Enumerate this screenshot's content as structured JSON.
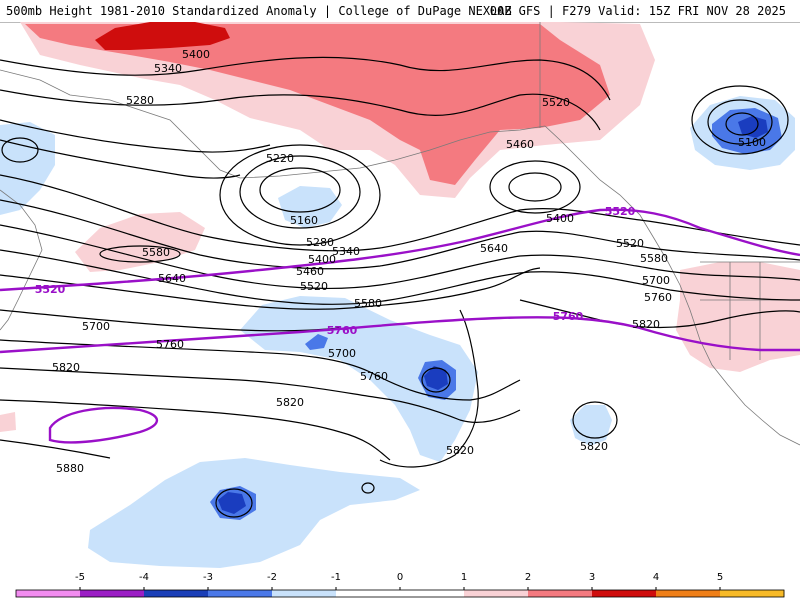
{
  "header": {
    "title_left": "500mb Height 1981-2010 Standardized Anomaly | College of DuPage NEXLAB",
    "title_right": "00Z GFS | F279 Valid: 15Z FRI NOV 28 2025"
  },
  "map": {
    "region": "North Pacific and western North America",
    "height_contour_labels": [
      "5400",
      "5340",
      "5280",
      "5520",
      "5460",
      "5220",
      "5160",
      "5280",
      "5340",
      "5400",
      "5460",
      "5520",
      "5580",
      "5640",
      "5580",
      "5700",
      "5760",
      "5700",
      "5760",
      "5820",
      "5820",
      "5880",
      "5820",
      "5820",
      "5400",
      "5520",
      "5580",
      "5640",
      "5700",
      "5760",
      "5820",
      "5100"
    ],
    "climo_contour_labels": [
      "5520",
      "5520",
      "5760",
      "5760"
    ],
    "colors": {
      "contour": "#000000",
      "climo_contour": "#9a10c8",
      "pos1": "#f9d2d6",
      "pos2": "#f47a80",
      "pos3": "#cf0d0d",
      "neg1": "#c9e2fb",
      "neg2": "#4a78e8",
      "neg3": "#1a3dbf"
    }
  },
  "colorbar": {
    "ticks": [
      "-5",
      "-4",
      "-3",
      "-2",
      "-1",
      "0",
      "1",
      "2",
      "3",
      "4",
      "5"
    ],
    "colors": [
      "#f28cf0",
      "#9b1ec5",
      "#1a3fb8",
      "#4a78e8",
      "#c9e2fb",
      "#ffffff",
      "#ffffff",
      "#f9d2d6",
      "#f47a80",
      "#cf0d0d",
      "#ef7f18",
      "#f7ba28"
    ]
  }
}
